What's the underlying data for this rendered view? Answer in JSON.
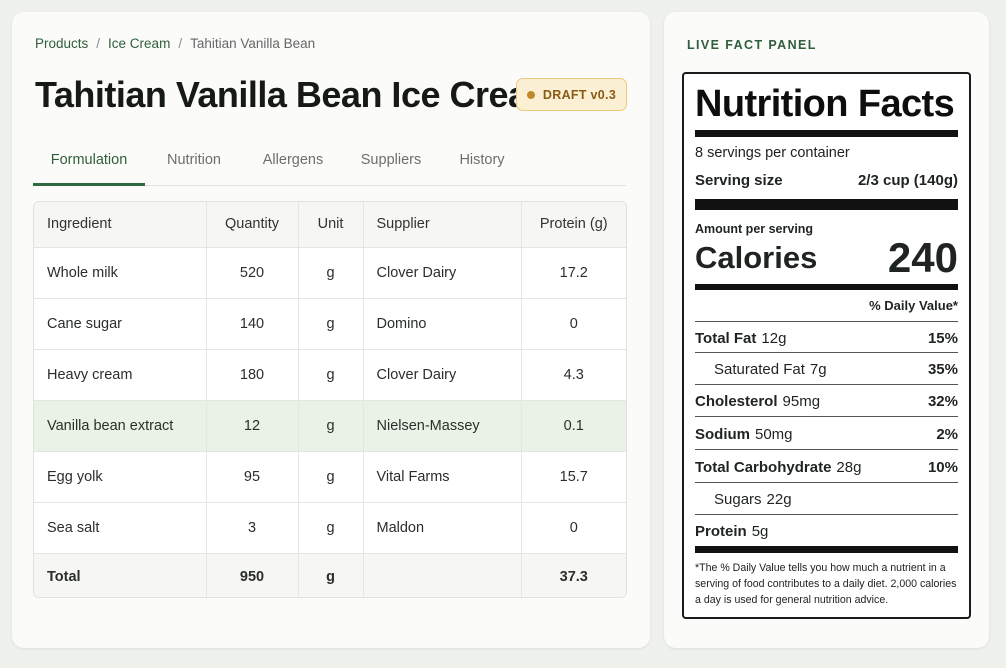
{
  "breadcrumb": {
    "items": [
      "Products",
      "Ice Cream",
      "Tahitian Vanilla Bean"
    ],
    "separator": "/"
  },
  "page_title": "Tahitian Vanilla Bean Ice Cream",
  "status_badge": "DRAFT v0.3",
  "tabs": [
    "Formulation",
    "Nutrition",
    "Allergens",
    "Suppliers",
    "History"
  ],
  "active_tab": "Formulation",
  "table": {
    "columns": [
      "Ingredient",
      "Quantity",
      "Unit",
      "Supplier",
      "Protein (g)"
    ],
    "rows": [
      {
        "ingredient": "Whole milk",
        "quantity": "520",
        "unit": "g",
        "supplier": "Clover Dairy",
        "protein": "17.2"
      },
      {
        "ingredient": "Cane sugar",
        "quantity": "140",
        "unit": "g",
        "supplier": "Domino",
        "protein": "0"
      },
      {
        "ingredient": "Heavy cream",
        "quantity": "180",
        "unit": "g",
        "supplier": "Clover Dairy",
        "protein": "4.3"
      },
      {
        "ingredient": "Vanilla bean extract",
        "quantity": "12",
        "unit": "g",
        "supplier": "Nielsen-Massey",
        "protein": "0.1"
      },
      {
        "ingredient": "Egg yolk",
        "quantity": "95",
        "unit": "g",
        "supplier": "Vital Farms",
        "protein": "15.7"
      },
      {
        "ingredient": "Sea salt",
        "quantity": "3",
        "unit": "g",
        "supplier": "Maldon",
        "protein": "0"
      }
    ],
    "total": {
      "label": "Total",
      "quantity": "950",
      "unit": "g",
      "supplier": "",
      "protein": "37.3"
    },
    "highlighted_row": "Vanilla bean extract"
  },
  "panel": {
    "label": "LIVE FACT PANEL",
    "title": "Nutrition Facts",
    "servings": "8 servings per container",
    "serving_size_label": "Serving size",
    "serving_size_value": "2/3 cup (140g)",
    "amount_per_serving": "Amount per serving",
    "calories_label": "Calories",
    "calories_value": "240",
    "daily_value_header": "% Daily Value*",
    "nutrients": {
      "total_fat": {
        "label": "Total Fat",
        "amount": "12g",
        "dv": "15%"
      },
      "saturated_fat": {
        "label": "Saturated Fat",
        "amount": "7g",
        "dv": "35%"
      },
      "cholesterol": {
        "label": "Cholesterol",
        "amount": "95mg",
        "dv": "32%"
      },
      "sodium": {
        "label": "Sodium",
        "amount": "50mg",
        "dv": "2%"
      },
      "total_carbohydrate": {
        "label": "Total Carbohydrate",
        "amount": "28g",
        "dv": "10%"
      },
      "sugars": {
        "label": "Sugars",
        "amount": "22g",
        "dv": ""
      },
      "protein": {
        "label": "Protein",
        "amount": "5g",
        "dv": ""
      }
    },
    "footnote_lines": [
      "*The % Daily Value tells you how much a nutrient in a",
      "serving of food contributes to a daily diet. 2,000 calories",
      "a day is used for general nutrition advice."
    ]
  },
  "colors": {
    "accent": "#2f5e3c",
    "highlight_row": "#eaf2e6",
    "badge_bg": "#fbf0d4",
    "badge_text": "#8a5b14"
  }
}
